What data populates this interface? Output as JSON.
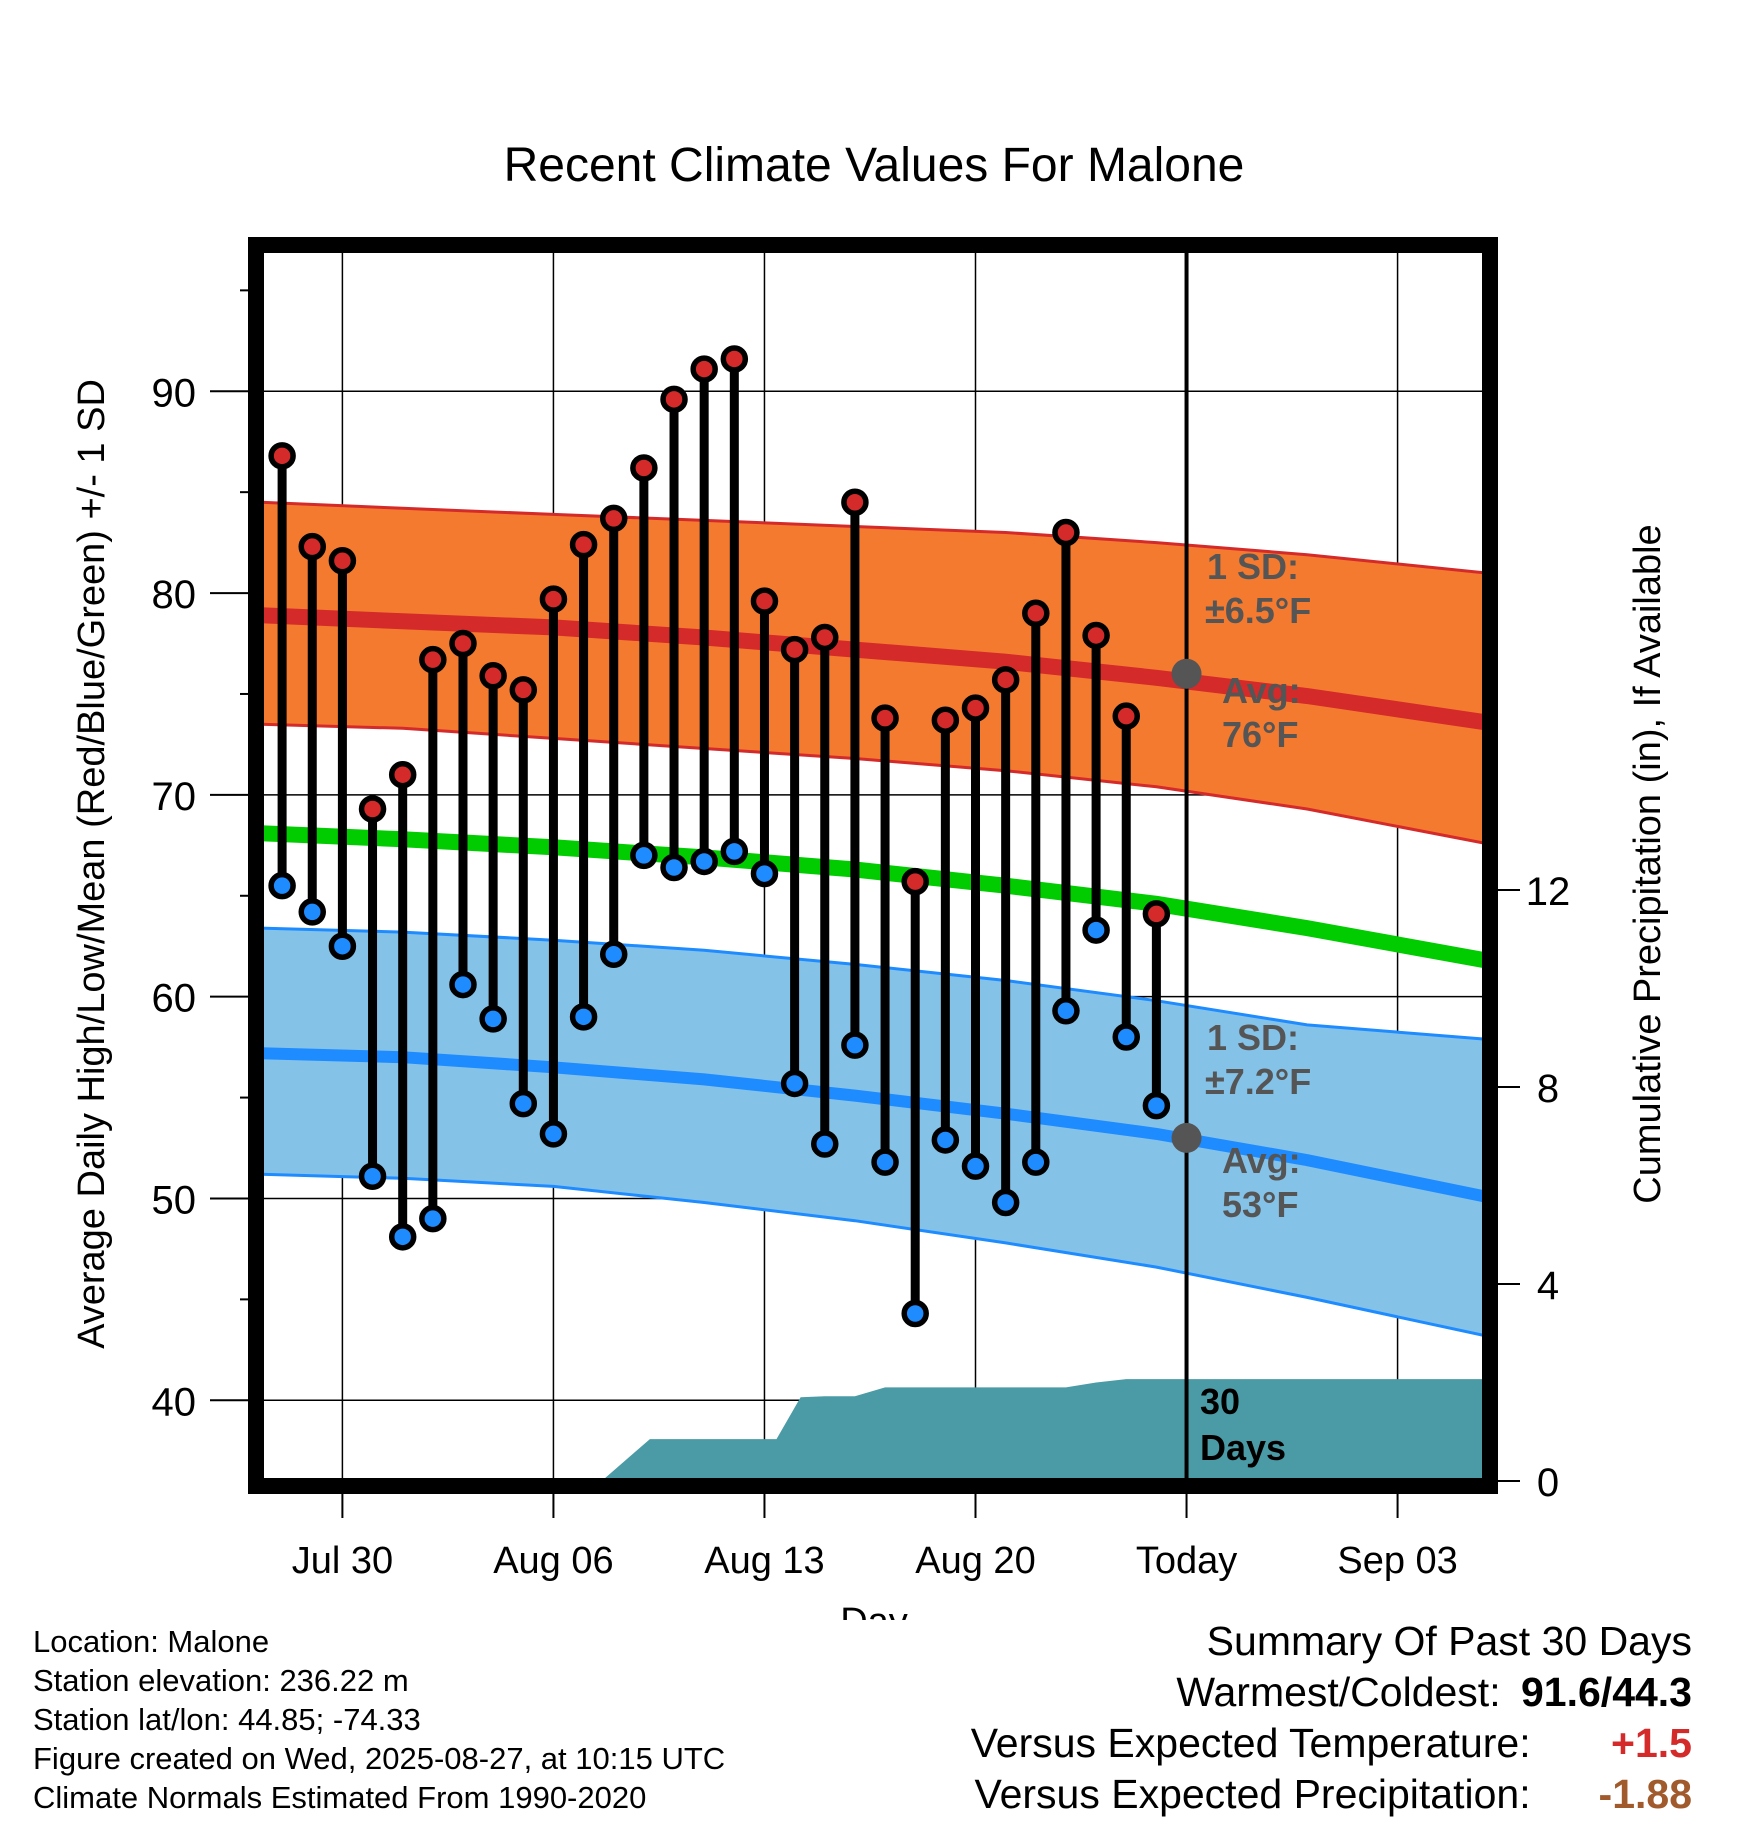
{
  "chart_data": {
    "type": "line",
    "title": "Recent Climate Values For Malone",
    "xlabel": "Day",
    "ylabel": "Average Daily High/Low/Mean (Red/Blue/Green) +/- 1 SD",
    "y2label": "Cumulative Precipitation (in), If Available",
    "ylim": [
      36,
      97
    ],
    "y2lim": [
      0,
      30
    ],
    "yticks": [
      40,
      50,
      60,
      70,
      80,
      90
    ],
    "y2ticks": [
      0,
      4,
      8,
      12
    ],
    "xticks": [
      {
        "day": 3,
        "label": "Jul 30"
      },
      {
        "day": 10,
        "label": "Aug 06"
      },
      {
        "day": 17,
        "label": "Aug 13"
      },
      {
        "day": 24,
        "label": "Aug 20"
      },
      {
        "day": 31,
        "label": "Today"
      },
      {
        "day": 38,
        "label": "Sep 03"
      }
    ],
    "xlim": [
      0.3,
      40.9
    ],
    "today": 31,
    "grid": true,
    "observed_days": [
      1,
      2,
      3,
      4,
      5,
      6,
      7,
      8,
      9,
      10,
      11,
      12,
      13,
      14,
      15,
      16,
      17,
      18,
      19,
      20,
      21,
      22,
      23,
      24,
      25,
      26,
      27,
      28,
      29,
      30
    ],
    "observed_high": [
      86.8,
      82.3,
      81.6,
      69.3,
      71.0,
      76.7,
      77.5,
      75.9,
      75.2,
      79.7,
      82.4,
      83.7,
      86.2,
      89.6,
      91.1,
      91.6,
      79.6,
      77.2,
      77.8,
      84.5,
      73.8,
      65.7,
      73.7,
      74.3,
      75.7,
      79.0,
      83.0,
      77.9,
      73.9,
      64.1
    ],
    "observed_low": [
      65.5,
      64.2,
      62.5,
      51.1,
      48.1,
      49.0,
      60.6,
      58.9,
      54.7,
      53.2,
      59.0,
      62.1,
      67.0,
      66.4,
      66.7,
      67.2,
      66.1,
      55.7,
      52.7,
      57.6,
      51.8,
      44.3,
      52.9,
      51.6,
      49.8,
      51.8,
      59.3,
      63.3,
      58.0,
      54.6
    ],
    "normal_days": [
      0.3,
      5,
      10,
      15,
      20,
      25,
      30,
      35,
      40.9
    ],
    "normal_high": [
      78.9,
      78.6,
      78.3,
      77.8,
      77.2,
      76.6,
      75.8,
      74.9,
      73.6
    ],
    "normal_high_upper": [
      84.5,
      84.2,
      83.9,
      83.6,
      83.3,
      83.0,
      82.5,
      81.9,
      81.0
    ],
    "normal_high_lower": [
      73.5,
      73.3,
      72.8,
      72.3,
      71.8,
      71.2,
      70.4,
      69.3,
      67.6
    ],
    "normal_mean": [
      68.1,
      67.8,
      67.4,
      66.9,
      66.3,
      65.5,
      64.6,
      63.4,
      61.8
    ],
    "normal_low": [
      57.2,
      57.0,
      56.5,
      55.9,
      55.1,
      54.2,
      53.2,
      51.9,
      50.1
    ],
    "normal_low_upper": [
      63.4,
      63.2,
      62.8,
      62.3,
      61.6,
      60.8,
      59.8,
      58.6,
      57.9
    ],
    "normal_low_lower": [
      51.2,
      51.0,
      50.6,
      49.8,
      48.9,
      47.8,
      46.6,
      45.1,
      43.2
    ],
    "precip_days": [
      11.6,
      13.2,
      13.4,
      13.8,
      14.6,
      16.0,
      17.4,
      18.2,
      19.0,
      20.0,
      21.0,
      22.0,
      23.0,
      25.0,
      26.0,
      27.0,
      28.0,
      29.0,
      30.0,
      31.0,
      35.0,
      40.9
    ],
    "precip_values": [
      0.0,
      0.85,
      0.85,
      0.85,
      0.85,
      0.85,
      0.85,
      1.7,
      1.72,
      1.72,
      1.9,
      1.9,
      1.9,
      1.9,
      1.9,
      1.9,
      2.0,
      2.07,
      2.07,
      2.07,
      2.07,
      2.07
    ],
    "today_markers": {
      "high": 76,
      "low": 53
    },
    "annotations": {
      "high_sd_1": "1 SD:",
      "high_sd_2": "±6.5°F",
      "high_avg_1": "Avg:",
      "high_avg_2": "76°F",
      "low_sd_1": "1 SD:",
      "low_sd_2": "±7.2°F",
      "low_avg_1": "Avg:",
      "low_avg_2": "53°F",
      "period_1": "30",
      "period_2": "Days"
    },
    "colors": {
      "high": "#d42a2a",
      "high_band": "#f47a30",
      "mean": "#00cc00",
      "low": "#1e8cff",
      "low_band": "#85c2e8",
      "precip": "#4a9ba5",
      "annotation": "#555555"
    }
  },
  "info": {
    "location": "Location: Malone",
    "elevation": "Station elevation: 236.22 m",
    "latlon": "Station lat/lon: 44.85; -74.33",
    "created": "Figure created on Wed, 2025-08-27, at 10:15 UTC",
    "normals": "Climate Normals Estimated From 1990-2020"
  },
  "summary": {
    "title": "Summary Of Past 30 Days",
    "warm_cold_label": "Warmest/Coldest:",
    "warm_cold_value": "91.6/44.3",
    "temp_label": "Versus Expected Temperature:",
    "temp_value": "+1.5",
    "precip_label": "Versus Expected Precipitation:",
    "precip_value": "-1.88"
  }
}
